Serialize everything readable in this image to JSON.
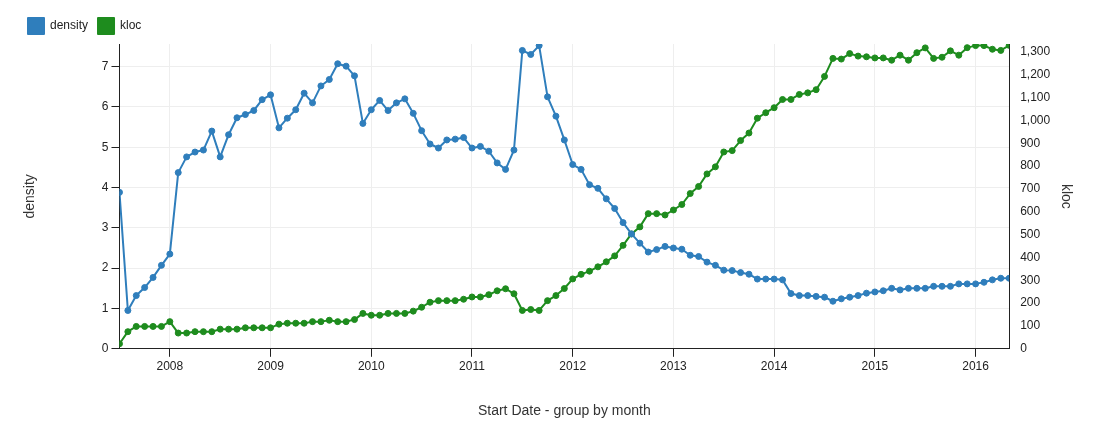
{
  "chart_data": {
    "type": "line",
    "xlabel": "Start Date - group by month",
    "ylabel": "density",
    "y2label": "kloc",
    "x": [
      "2007-07",
      "2007-08",
      "2007-09",
      "2007-10",
      "2007-11",
      "2007-12",
      "2008-01",
      "2008-02",
      "2008-03",
      "2008-04",
      "2008-05",
      "2008-06",
      "2008-07",
      "2008-08",
      "2008-09",
      "2008-10",
      "2008-11",
      "2008-12",
      "2009-01",
      "2009-02",
      "2009-03",
      "2009-04",
      "2009-05",
      "2009-06",
      "2009-07",
      "2009-08",
      "2009-09",
      "2009-10",
      "2009-11",
      "2009-12",
      "2010-01",
      "2010-02",
      "2010-03",
      "2010-04",
      "2010-05",
      "2010-06",
      "2010-07",
      "2010-08",
      "2010-09",
      "2010-10",
      "2010-11",
      "2010-12",
      "2011-01",
      "2011-02",
      "2011-03",
      "2011-04",
      "2011-05",
      "2011-06",
      "2011-07",
      "2011-08",
      "2011-09",
      "2011-10",
      "2011-11",
      "2011-12",
      "2012-01",
      "2012-02",
      "2012-03",
      "2012-04",
      "2012-05",
      "2012-06",
      "2012-07",
      "2012-08",
      "2012-09",
      "2012-10",
      "2012-11",
      "2012-12",
      "2013-01",
      "2013-02",
      "2013-03",
      "2013-04",
      "2013-05",
      "2013-06",
      "2013-07",
      "2013-08",
      "2013-09",
      "2013-10",
      "2013-11",
      "2013-12",
      "2014-01",
      "2014-02",
      "2014-03",
      "2014-04",
      "2014-05",
      "2014-06",
      "2014-07",
      "2014-08",
      "2014-09",
      "2014-10",
      "2014-11",
      "2014-12",
      "2015-01",
      "2015-02",
      "2015-03",
      "2015-04",
      "2015-05",
      "2015-06",
      "2015-07",
      "2015-08",
      "2015-09",
      "2015-10",
      "2015-11",
      "2015-12",
      "2016-01",
      "2016-02",
      "2016-03",
      "2016-04",
      "2016-05"
    ],
    "series": [
      {
        "name": "density",
        "color": "#2f7ebc",
        "values": [
          3.88,
          0.95,
          1.32,
          1.52,
          1.77,
          2.07,
          2.35,
          4.37,
          4.76,
          4.88,
          4.93,
          5.4,
          4.76,
          5.31,
          5.73,
          5.81,
          5.91,
          6.18,
          6.3,
          5.48,
          5.72,
          5.93,
          6.34,
          6.1,
          6.52,
          6.68,
          7.07,
          7.01,
          6.77,
          5.59,
          5.93,
          6.16,
          5.91,
          6.1,
          6.2,
          5.84,
          5.41,
          5.08,
          4.98,
          5.18,
          5.2,
          5.24,
          4.98,
          5.02,
          4.9,
          4.61,
          4.45,
          4.93,
          7.4,
          7.3,
          7.52,
          6.25,
          5.77,
          5.18,
          4.57,
          4.45,
          4.07,
          3.98,
          3.72,
          3.48,
          3.13,
          2.85,
          2.62,
          2.4,
          2.46,
          2.54,
          2.5,
          2.47,
          2.32,
          2.29,
          2.15,
          2.07,
          1.95,
          1.94,
          1.89,
          1.85,
          1.73,
          1.73,
          1.73,
          1.71,
          1.37,
          1.32,
          1.32,
          1.3,
          1.28,
          1.18,
          1.24,
          1.28,
          1.32,
          1.38,
          1.41,
          1.44,
          1.5,
          1.46,
          1.5,
          1.5,
          1.5,
          1.55,
          1.55,
          1.55,
          1.61,
          1.61,
          1.61,
          1.65,
          1.71,
          1.75,
          1.75
        ]
      },
      {
        "name": "kloc",
        "color": "#1e8c1e",
        "axis": "y2",
        "values": [
          22,
          75,
          98,
          98,
          98,
          98,
          119,
          69,
          69,
          75,
          75,
          75,
          86,
          86,
          86,
          92,
          92,
          92,
          92,
          108,
          112,
          112,
          112,
          119,
          119,
          125,
          119,
          119,
          128,
          155,
          147,
          147,
          155,
          155,
          155,
          165,
          182,
          204,
          211,
          211,
          211,
          217,
          227,
          227,
          237,
          254,
          263,
          241,
          168,
          172,
          168,
          211,
          233,
          264,
          306,
          326,
          340,
          359,
          381,
          407,
          453,
          503,
          534,
          592,
          592,
          586,
          608,
          632,
          680,
          711,
          766,
          797,
          862,
          868,
          912,
          945,
          1010,
          1034,
          1056,
          1092,
          1092,
          1114,
          1121,
          1135,
          1193,
          1272,
          1269,
          1293,
          1282,
          1279,
          1274,
          1274,
          1264,
          1286,
          1264,
          1297,
          1318,
          1272,
          1277,
          1305,
          1286,
          1319,
          1328,
          1328,
          1312,
          1307,
          1329
        ]
      }
    ],
    "xlim": [
      "2007-07",
      "2016-05"
    ],
    "xticks": [
      "2008",
      "2009",
      "2010",
      "2011",
      "2012",
      "2013",
      "2014",
      "2015",
      "2016"
    ],
    "ylim": [
      0,
      7.56
    ],
    "yticks": [
      0,
      1,
      2,
      3,
      4,
      5,
      6,
      7
    ],
    "y2lim": [
      0,
      1335
    ],
    "y2ticks": [
      0,
      100,
      200,
      300,
      400,
      500,
      600,
      700,
      800,
      900,
      {
        "value": 1000,
        "label": "1,000"
      },
      {
        "value": 1100,
        "label": "1,100"
      },
      {
        "value": 1200,
        "label": "1,200"
      },
      {
        "value": 1300,
        "label": "1,300"
      }
    ],
    "grid": true,
    "legend": "top left",
    "marker": "circle",
    "line_style": "solid"
  }
}
